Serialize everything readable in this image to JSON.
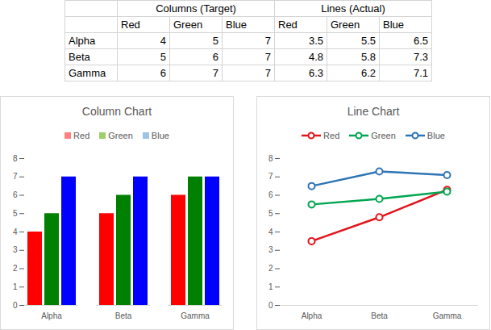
{
  "table": {
    "groups": [
      "Columns (Target)",
      "Lines (Actual)"
    ],
    "columns": [
      "Red",
      "Green",
      "Blue"
    ],
    "rows": [
      {
        "label": "Alpha",
        "values": [
          4,
          5,
          7,
          3.5,
          5.5,
          6.5
        ]
      },
      {
        "label": "Beta",
        "values": [
          5,
          6,
          7,
          4.8,
          5.8,
          7.3
        ]
      },
      {
        "label": "Gamma",
        "values": [
          6,
          7,
          7,
          6.3,
          6.2,
          7.1
        ]
      }
    ]
  },
  "chart_data": [
    {
      "type": "bar",
      "title": "Column Chart",
      "categories": [
        "Alpha",
        "Beta",
        "Gamma"
      ],
      "series": [
        {
          "name": "Red",
          "color": "#ff8080",
          "values": [
            4,
            5,
            6
          ]
        },
        {
          "name": "Green",
          "color": "#9bd06a",
          "values": [
            5,
            6,
            7
          ]
        },
        {
          "name": "Blue",
          "color": "#9dc3e6",
          "values": [
            7,
            7,
            7
          ]
        }
      ],
      "ylim": [
        0,
        8
      ],
      "yticks": [
        0,
        1,
        2,
        3,
        4,
        5,
        6,
        7,
        8
      ],
      "legend": "top",
      "grid": false
    },
    {
      "type": "line",
      "title": "Line Chart",
      "categories": [
        "Alpha",
        "Beta",
        "Gamma"
      ],
      "series": [
        {
          "name": "Red",
          "color": "#e3141b",
          "values": [
            3.5,
            4.8,
            6.3
          ],
          "marker": "circle"
        },
        {
          "name": "Green",
          "color": "#00a651",
          "values": [
            5.5,
            5.8,
            6.2
          ],
          "marker": "circle"
        },
        {
          "name": "Blue",
          "color": "#2e75b6",
          "values": [
            6.5,
            7.3,
            7.1
          ],
          "marker": "circle"
        }
      ],
      "ylim": [
        0,
        8
      ],
      "yticks": [
        0,
        1,
        2,
        3,
        4,
        5,
        6,
        7,
        8
      ],
      "legend": "top",
      "grid": false
    }
  ]
}
